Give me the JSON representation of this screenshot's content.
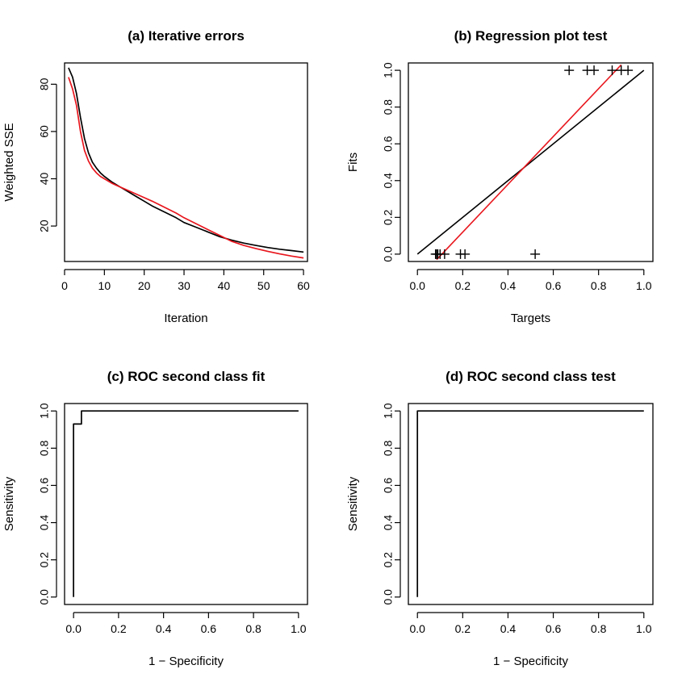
{
  "colors": {
    "black": "#000000",
    "red": "#e8161d"
  },
  "chart_data": [
    {
      "type": "line",
      "title": "(a) Iterative errors",
      "xlabel": "Iteration",
      "ylabel": "Weighted SSE",
      "xlim": [
        0,
        61
      ],
      "ylim": [
        5,
        89
      ],
      "xticks": [
        0,
        10,
        20,
        30,
        40,
        50,
        60
      ],
      "yticks": [
        20,
        40,
        60,
        80
      ],
      "grid": false,
      "series": [
        {
          "color": "#000000",
          "points": [
            [
              1,
              87
            ],
            [
              2,
              83
            ],
            [
              3,
              76
            ],
            [
              4,
              66
            ],
            [
              5,
              57
            ],
            [
              6,
              51
            ],
            [
              7,
              47
            ],
            [
              8,
              44.5
            ],
            [
              9,
              42.5
            ],
            [
              10,
              41
            ],
            [
              12,
              38.5
            ],
            [
              14,
              36.5
            ],
            [
              16,
              34.5
            ],
            [
              18,
              32.5
            ],
            [
              20,
              30.5
            ],
            [
              22,
              28.5
            ],
            [
              25,
              26
            ],
            [
              28,
              23.5
            ],
            [
              30,
              21.5
            ],
            [
              33,
              19.5
            ],
            [
              36,
              17.5
            ],
            [
              39,
              15.5
            ],
            [
              42,
              14
            ],
            [
              45,
              12.8
            ],
            [
              48,
              11.8
            ],
            [
              51,
              10.9
            ],
            [
              54,
              10.2
            ],
            [
              57,
              9.6
            ],
            [
              60,
              9.0
            ]
          ]
        },
        {
          "color": "#e8161d",
          "points": [
            [
              1,
              83
            ],
            [
              2,
              78
            ],
            [
              3,
              71
            ],
            [
              4,
              60
            ],
            [
              5,
              52
            ],
            [
              6,
              47.5
            ],
            [
              7,
              44.5
            ],
            [
              8,
              42.5
            ],
            [
              9,
              41
            ],
            [
              10,
              40
            ],
            [
              12,
              38
            ],
            [
              14,
              36.5
            ],
            [
              16,
              35
            ],
            [
              18,
              33.5
            ],
            [
              20,
              32
            ],
            [
              22,
              30.5
            ],
            [
              25,
              28
            ],
            [
              28,
              25.5
            ],
            [
              30,
              23.5
            ],
            [
              33,
              21
            ],
            [
              36,
              18.5
            ],
            [
              39,
              16
            ],
            [
              42,
              13.5
            ],
            [
              45,
              11.8
            ],
            [
              48,
              10.5
            ],
            [
              51,
              9.3
            ],
            [
              54,
              8.2
            ],
            [
              57,
              7.3
            ],
            [
              60,
              6.5
            ]
          ]
        }
      ]
    },
    {
      "type": "scatter",
      "title": "(b) Regression plot test",
      "xlabel": "Targets",
      "ylabel": "Fits",
      "xlim": [
        -0.04,
        1.04
      ],
      "ylim": [
        -0.04,
        1.04
      ],
      "xticks": [
        "0.0",
        "0.2",
        "0.4",
        "0.6",
        "0.8",
        "1.0"
      ],
      "yticks": [
        "0.0",
        "0.2",
        "0.4",
        "0.6",
        "0.8",
        "1.0"
      ],
      "grid": false,
      "points": [
        [
          0.08,
          0
        ],
        [
          0.085,
          0
        ],
        [
          0.09,
          0
        ],
        [
          0.1,
          0
        ],
        [
          0.12,
          0
        ],
        [
          0.19,
          0
        ],
        [
          0.21,
          0
        ],
        [
          0.52,
          0
        ],
        [
          0.67,
          1
        ],
        [
          0.75,
          1
        ],
        [
          0.78,
          1
        ],
        [
          0.86,
          1
        ],
        [
          0.9,
          1
        ],
        [
          0.93,
          1
        ]
      ],
      "lines": [
        {
          "color": "#000000",
          "x": [
            0,
            1
          ],
          "y": [
            0,
            1
          ]
        },
        {
          "color": "#e8161d",
          "x": [
            0.085,
            0.9
          ],
          "y": [
            -0.03,
            1.03
          ]
        }
      ]
    },
    {
      "type": "line",
      "title": "(c) ROC second class fit",
      "xlabel": "1 − Specificity",
      "ylabel": "Sensitivity",
      "xlim": [
        -0.04,
        1.04
      ],
      "ylim": [
        -0.04,
        1.04
      ],
      "xticks": [
        "0.0",
        "0.2",
        "0.4",
        "0.6",
        "0.8",
        "1.0"
      ],
      "yticks": [
        "0.0",
        "0.2",
        "0.4",
        "0.6",
        "0.8",
        "1.0"
      ],
      "grid": false,
      "series": [
        {
          "color": "#000000",
          "points": [
            [
              0,
              0
            ],
            [
              0,
              0.93
            ],
            [
              0.035,
              0.93
            ],
            [
              0.035,
              1
            ],
            [
              1,
              1
            ]
          ]
        }
      ]
    },
    {
      "type": "line",
      "title": "(d) ROC second class test",
      "xlabel": "1 − Specificity",
      "ylabel": "Sensitivity",
      "xlim": [
        -0.04,
        1.04
      ],
      "ylim": [
        -0.04,
        1.04
      ],
      "xticks": [
        "0.0",
        "0.2",
        "0.4",
        "0.6",
        "0.8",
        "1.0"
      ],
      "yticks": [
        "0.0",
        "0.2",
        "0.4",
        "0.6",
        "0.8",
        "1.0"
      ],
      "grid": false,
      "series": [
        {
          "color": "#000000",
          "points": [
            [
              0,
              0
            ],
            [
              0,
              1
            ],
            [
              1,
              1
            ]
          ]
        }
      ]
    }
  ]
}
